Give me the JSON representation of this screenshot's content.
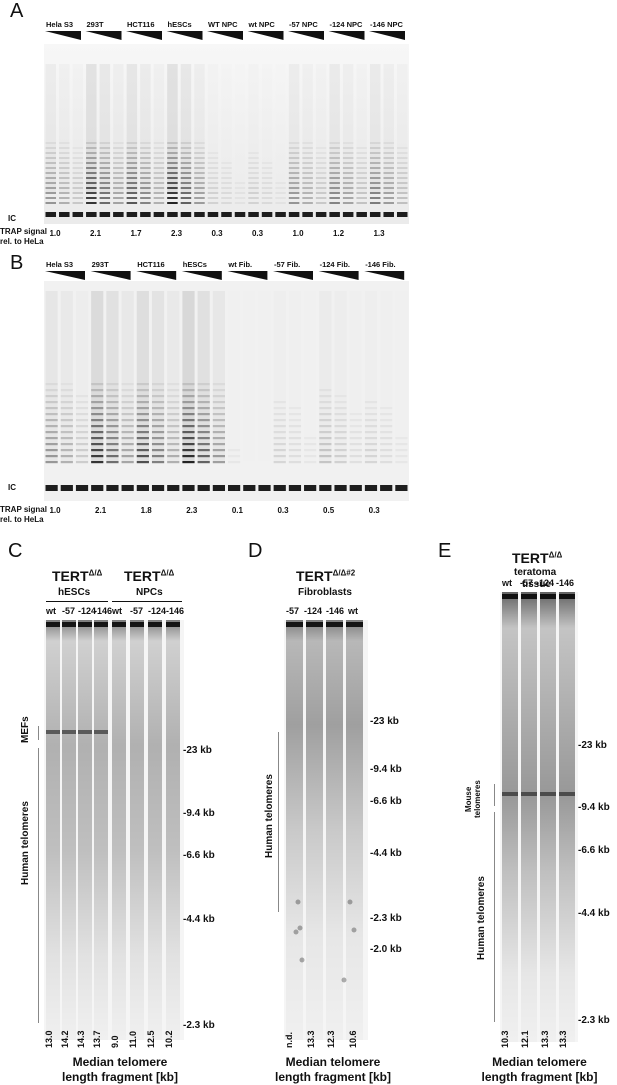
{
  "panelA": {
    "letter": "A",
    "lanes": [
      "Hela S3",
      "293T",
      "HCT116",
      "hESCs",
      "WT NPC",
      "wt NPC",
      "-57 NPC",
      "-124 NPC",
      "-146 NPC"
    ],
    "ic_label": "IC",
    "trap_label_1": "TRAP signal",
    "trap_label_2": "rel. to HeLa",
    "values": [
      "1.0",
      "2.1",
      "1.7",
      "2.3",
      "0.3",
      "0.3",
      "1.0",
      "1.2",
      "1.3"
    ]
  },
  "panelB": {
    "letter": "B",
    "lanes": [
      "Hela S3",
      "293T",
      "HCT116",
      "hESCs",
      "wt Fib.",
      "-57 Fib.",
      "-124 Fib.",
      "-146 Fib."
    ],
    "ic_label": "IC",
    "trap_label_1": "TRAP signal",
    "trap_label_2": "rel. to HeLa",
    "values": [
      "1.0",
      "2.1",
      "1.8",
      "2.3",
      "0.1",
      "0.3",
      "0.5",
      "0.3"
    ]
  },
  "panelC": {
    "letter": "C",
    "title1": "TERT",
    "sup1": "Δ/Δ",
    "sub1": "hESCs",
    "title2": "TERT",
    "sup2": "Δ/Δ",
    "sub2": "NPCs",
    "lanes1": [
      "wt",
      "-57",
      "-124",
      "-146"
    ],
    "lanes2": [
      "wt",
      "-57",
      "-124",
      "-146"
    ],
    "side_top": "MEFs",
    "side_main": "Human telomeres",
    "markers": [
      "-23 kb",
      "-9.4 kb",
      "-6.6 kb",
      "-4.4 kb",
      "-2.3 kb"
    ],
    "medians": [
      "13.0",
      "14.2",
      "14.3",
      "13.7",
      "9.0",
      "11.0",
      "12.5",
      "10.2"
    ],
    "caption1": "Median telomere",
    "caption2": "length fragment [kb]"
  },
  "panelD": {
    "letter": "D",
    "title": "TERT",
    "sup": "Δ/Δ#2",
    "sub": "Fibroblasts",
    "lanes": [
      "-57",
      "-124",
      "-146",
      "wt"
    ],
    "side_main": "Human telomeres",
    "markers": [
      "-23 kb",
      "-9.4 kb",
      "-6.6 kb",
      "-4.4 kb",
      "-2.3 kb",
      "-2.0 kb"
    ],
    "medians": [
      "n.d.",
      "13.3",
      "12.3",
      "10.6"
    ],
    "caption1": "Median telomere",
    "caption2": "length fragment [kb]"
  },
  "panelE": {
    "letter": "E",
    "title": "TERT",
    "sup": "Δ/Δ",
    "sub1": "teratoma",
    "sub2": "tissue",
    "lanes": [
      "wt",
      "-57",
      "-124",
      "-146"
    ],
    "side_top_1": "Mouse",
    "side_top_2": "telomeres",
    "side_main": "Human telomeres",
    "markers": [
      "-23 kb",
      "-9.4 kb",
      "-6.6 kb",
      "-4.4 kb",
      "-2.3 kb"
    ],
    "medians": [
      "10.3",
      "12.1",
      "13.3",
      "13.3"
    ],
    "caption1": "Median telomere",
    "caption2": "length fragment [kb]"
  }
}
